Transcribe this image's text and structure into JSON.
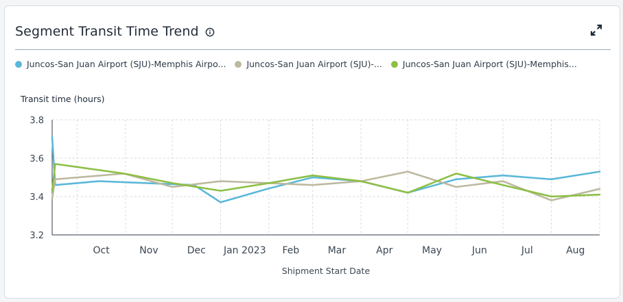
{
  "header": {
    "title": "Segment Transit Time Trend",
    "info_icon": "info-icon",
    "expand_icon": "expand-icon"
  },
  "legend": [
    {
      "label": "Juncos-San Juan Airport (SJU)-Memphis Airpo...",
      "color": "#5bb8d9"
    },
    {
      "label": "Juncos-San Juan Airport (SJU)-...",
      "color": "#bdb9a0"
    },
    {
      "label": "Juncos-San Juan Airport (SJU)-Memphis...",
      "color": "#8cbf44"
    }
  ],
  "chart_data": {
    "type": "line",
    "ylabel": "Transit time (hours)",
    "xlabel": "Shipment Start Date",
    "ylim": [
      3.2,
      3.8
    ],
    "yticks": [
      "3.2",
      "3.4",
      "3.6",
      "3.8"
    ],
    "xtick_labels": [
      "Oct",
      "Nov",
      "Dec",
      "Jan 2023",
      "Feb",
      "Mar",
      "Apr",
      "May",
      "Jun",
      "Jul",
      "Aug"
    ],
    "grid": true,
    "series": [
      {
        "name": "Juncos-San Juan Airport (SJU)-Memphis Airpo...",
        "color": "#5bb8d9",
        "points": [
          [
            "2022-09-15",
            3.71
          ],
          [
            "2022-09-17",
            3.46
          ],
          [
            "2022-10-15",
            3.48
          ],
          [
            "2022-11-15",
            3.47
          ],
          [
            "2022-12-15",
            3.46
          ],
          [
            "2023-01-01",
            3.37
          ],
          [
            "2023-01-31",
            3.44
          ],
          [
            "2023-03-01",
            3.5
          ],
          [
            "2023-04-01",
            3.48
          ],
          [
            "2023-05-01",
            3.42
          ],
          [
            "2023-06-01",
            3.49
          ],
          [
            "2023-07-01",
            3.51
          ],
          [
            "2023-08-01",
            3.49
          ],
          [
            "2023-09-01",
            3.53
          ]
        ]
      },
      {
        "name": "Juncos-San Juan Airport (SJU)-...",
        "color": "#bdb9a0",
        "points": [
          [
            "2022-09-15",
            3.39
          ],
          [
            "2022-09-17",
            3.49
          ],
          [
            "2022-10-31",
            3.52
          ],
          [
            "2022-12-01",
            3.45
          ],
          [
            "2023-01-01",
            3.48
          ],
          [
            "2023-02-01",
            3.47
          ],
          [
            "2023-03-01",
            3.46
          ],
          [
            "2023-04-01",
            3.48
          ],
          [
            "2023-05-01",
            3.53
          ],
          [
            "2023-06-01",
            3.45
          ],
          [
            "2023-07-01",
            3.48
          ],
          [
            "2023-08-01",
            3.38
          ],
          [
            "2023-09-01",
            3.44
          ]
        ]
      },
      {
        "name": "Juncos-San Juan Airport (SJU)-Memphis...",
        "color": "#8cbf44",
        "points": [
          [
            "2022-09-15",
            3.43
          ],
          [
            "2022-09-17",
            3.57
          ],
          [
            "2022-10-31",
            3.52
          ],
          [
            "2022-12-01",
            3.47
          ],
          [
            "2023-01-01",
            3.43
          ],
          [
            "2023-02-01",
            3.47
          ],
          [
            "2023-03-01",
            3.51
          ],
          [
            "2023-04-01",
            3.48
          ],
          [
            "2023-05-01",
            3.42
          ],
          [
            "2023-06-01",
            3.52
          ],
          [
            "2023-07-01",
            3.46
          ],
          [
            "2023-08-01",
            3.4
          ],
          [
            "2023-09-01",
            3.41
          ]
        ]
      }
    ]
  }
}
